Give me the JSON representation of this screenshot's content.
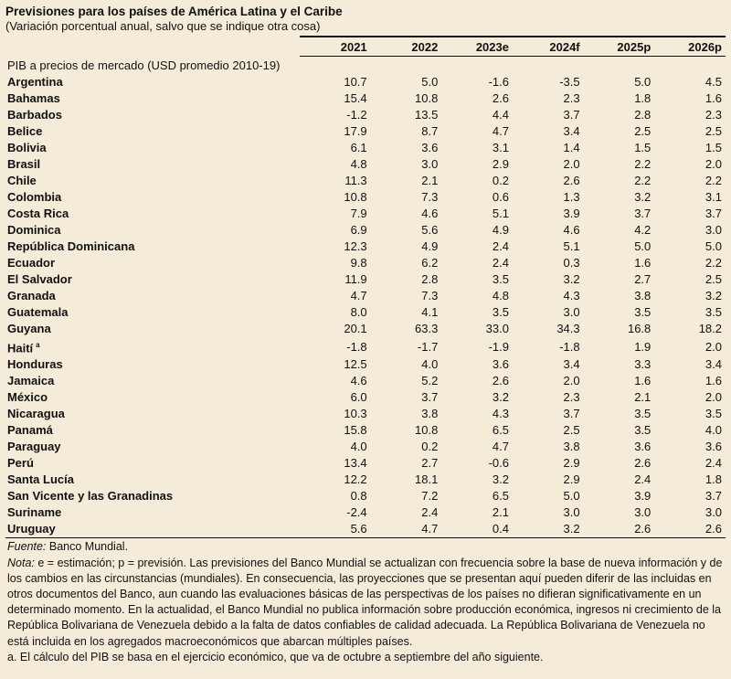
{
  "title": "Previsiones para los países de América Latina y el Caribe",
  "subtitle": "(Variación porcentual anual, salvo que se indique otra cosa)",
  "columns": [
    "2021",
    "2022",
    "2023e",
    "2024f",
    "2025p",
    "2026p"
  ],
  "section_label": "PIB a precios de mercado (USD promedio 2010-19)",
  "rows": [
    {
      "country": "Argentina",
      "values": [
        "10.7",
        "5.0",
        "-1.6",
        "-3.5",
        "5.0",
        "4.5"
      ]
    },
    {
      "country": "Bahamas",
      "values": [
        "15.4",
        "10.8",
        "2.6",
        "2.3",
        "1.8",
        "1.6"
      ]
    },
    {
      "country": "Barbados",
      "values": [
        "-1.2",
        "13.5",
        "4.4",
        "3.7",
        "2.8",
        "2.3"
      ]
    },
    {
      "country": "Belice",
      "values": [
        "17.9",
        "8.7",
        "4.7",
        "3.4",
        "2.5",
        "2.5"
      ]
    },
    {
      "country": "Bolivia",
      "values": [
        "6.1",
        "3.6",
        "3.1",
        "1.4",
        "1.5",
        "1.5"
      ]
    },
    {
      "country": "Brasil",
      "values": [
        "4.8",
        "3.0",
        "2.9",
        "2.0",
        "2.2",
        "2.0"
      ]
    },
    {
      "country": "Chile",
      "values": [
        "11.3",
        "2.1",
        "0.2",
        "2.6",
        "2.2",
        "2.2"
      ]
    },
    {
      "country": "Colombia",
      "values": [
        "10.8",
        "7.3",
        "0.6",
        "1.3",
        "3.2",
        "3.1"
      ]
    },
    {
      "country": "Costa Rica",
      "values": [
        "7.9",
        "4.6",
        "5.1",
        "3.9",
        "3.7",
        "3.7"
      ]
    },
    {
      "country": "Dominica",
      "values": [
        "6.9",
        "5.6",
        "4.9",
        "4.6",
        "4.2",
        "3.0"
      ]
    },
    {
      "country": "República Dominicana",
      "values": [
        "12.3",
        "4.9",
        "2.4",
        "5.1",
        "5.0",
        "5.0"
      ]
    },
    {
      "country": "Ecuador",
      "values": [
        "9.8",
        "6.2",
        "2.4",
        "0.3",
        "1.6",
        "2.2"
      ]
    },
    {
      "country": "El Salvador",
      "values": [
        "11.9",
        "2.8",
        "3.5",
        "3.2",
        "2.7",
        "2.5"
      ]
    },
    {
      "country": "Granada",
      "values": [
        "4.7",
        "7.3",
        "4.8",
        "4.3",
        "3.8",
        "3.2"
      ]
    },
    {
      "country": "Guatemala",
      "values": [
        "8.0",
        "4.1",
        "3.5",
        "3.0",
        "3.5",
        "3.5"
      ]
    },
    {
      "country": "Guyana",
      "values": [
        "20.1",
        "63.3",
        "33.0",
        "34.3",
        "16.8",
        "18.2"
      ]
    },
    {
      "country": "Haití",
      "sup": "a",
      "values": [
        "-1.8",
        "-1.7",
        "-1.9",
        "-1.8",
        "1.9",
        "2.0"
      ]
    },
    {
      "country": "Honduras",
      "values": [
        "12.5",
        "4.0",
        "3.6",
        "3.4",
        "3.3",
        "3.4"
      ]
    },
    {
      "country": "Jamaica",
      "values": [
        "4.6",
        "5.2",
        "2.6",
        "2.0",
        "1.6",
        "1.6"
      ]
    },
    {
      "country": "México",
      "values": [
        "6.0",
        "3.7",
        "3.2",
        "2.3",
        "2.1",
        "2.0"
      ]
    },
    {
      "country": "Nicaragua",
      "values": [
        "10.3",
        "3.8",
        "4.3",
        "3.7",
        "3.5",
        "3.5"
      ]
    },
    {
      "country": "Panamá",
      "values": [
        "15.8",
        "10.8",
        "6.5",
        "2.5",
        "3.5",
        "4.0"
      ]
    },
    {
      "country": "Paraguay",
      "values": [
        "4.0",
        "0.2",
        "4.7",
        "3.8",
        "3.6",
        "3.6"
      ]
    },
    {
      "country": "Perú",
      "values": [
        "13.4",
        "2.7",
        "-0.6",
        "2.9",
        "2.6",
        "2.4"
      ]
    },
    {
      "country": "Santa Lucía",
      "values": [
        "12.2",
        "18.1",
        "3.2",
        "2.9",
        "2.4",
        "1.8"
      ]
    },
    {
      "country": "San Vicente y las Granadinas",
      "values": [
        "0.8",
        "7.2",
        "6.5",
        "5.0",
        "3.9",
        "3.7"
      ]
    },
    {
      "country": "Suriname",
      "values": [
        "-2.4",
        "2.4",
        "2.1",
        "3.0",
        "3.0",
        "3.0"
      ]
    },
    {
      "country": "Uruguay",
      "values": [
        "5.6",
        "4.7",
        "0.4",
        "3.2",
        "2.6",
        "2.6"
      ]
    }
  ],
  "source_label": "Fuente:",
  "source_text": "Banco Mundial.",
  "note_label": "Nota:",
  "note_text": "e = estimación; p = previsión. Las previsiones del Banco Mundial se actualizan con frecuencia sobre la base de nueva información y de los cambios en las circunstancias (mundiales). En consecuencia, las proyecciones que se presentan aquí pueden diferir de las incluidas en otros documentos del Banco, aun cuando las evaluaciones básicas de las perspectivas de los países no difieran significativamente en un determinado momento. En la actualidad, el Banco Mundial no publica información sobre producción económica, ingresos ni crecimiento de la República Bolivariana de Venezuela debido a la falta de datos confiables de calidad adecuada. La República Bolivariana de Venezuela no está incluida en los agregados macroeconómicos que abarcan múltiples países.",
  "footnote_a": "a. El cálculo del PIB se basa en el ejercicio económico, que va de octubre a septiembre del año siguiente."
}
